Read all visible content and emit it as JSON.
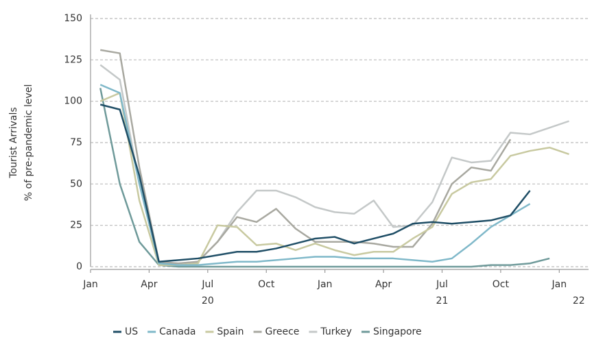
{
  "chart_data": {
    "type": "line",
    "y_label": [
      "Tourist Arrivals",
      "% of pre-pandemic level"
    ],
    "x": [
      0.5,
      1.5,
      2.5,
      3.5,
      4.5,
      5.5,
      6.5,
      7.5,
      8.5,
      9.5,
      10.5,
      11.5,
      12.5,
      13.5,
      14.5,
      15.5,
      16.5,
      17.5,
      18.5,
      19.5,
      20.5,
      21.5,
      22.5,
      23.5,
      24.5
    ],
    "series": [
      {
        "name": "US",
        "color": "#1f4e66",
        "values": [
          98,
          95,
          55,
          3,
          4,
          5,
          7,
          9,
          9,
          11,
          14,
          17,
          18,
          14,
          17,
          20,
          26,
          27,
          26,
          27,
          28,
          31,
          46,
          null,
          null
        ]
      },
      {
        "name": "Canada",
        "color": "#7fb8c9",
        "values": [
          110,
          105,
          50,
          2,
          1,
          1,
          2,
          3,
          3,
          4,
          5,
          6,
          6,
          5,
          5,
          5,
          4,
          3,
          5,
          14,
          24,
          31,
          38,
          null,
          null
        ]
      },
      {
        "name": "Spain",
        "color": "#c8c9a0",
        "values": [
          100,
          105,
          40,
          1,
          1,
          2,
          25,
          24,
          13,
          14,
          10,
          14,
          10,
          7,
          9,
          9,
          17,
          24,
          44,
          51,
          53,
          67,
          70,
          72,
          68
        ]
      },
      {
        "name": "Greece",
        "color": "#a8a8a0",
        "values": [
          131,
          129,
          60,
          3,
          2,
          3,
          15,
          30,
          27,
          35,
          23,
          15,
          15,
          15,
          14,
          12,
          12,
          26,
          50,
          60,
          58,
          77,
          null,
          null,
          null
        ]
      },
      {
        "name": "Turkey",
        "color": "#c4c8c8",
        "values": [
          122,
          113,
          50,
          2,
          2,
          3,
          15,
          33,
          46,
          46,
          42,
          36,
          33,
          32,
          40,
          24,
          25,
          39,
          66,
          63,
          64,
          81,
          80,
          84,
          88
        ]
      },
      {
        "name": "Singapore",
        "color": "#6f9a9a",
        "values": [
          108,
          50,
          15,
          1,
          0,
          0,
          0,
          0,
          0,
          0,
          0,
          0,
          0,
          0,
          0,
          0,
          0,
          0,
          0,
          0,
          1,
          1,
          2,
          5,
          null
        ]
      }
    ],
    "xlim": [
      0,
      25.5
    ],
    "xticks": [
      {
        "value": 0,
        "label": "Jan"
      },
      {
        "value": 3,
        "label": "Apr"
      },
      {
        "value": 6,
        "label": "Jul"
      },
      {
        "value": 9,
        "label": "Oct"
      },
      {
        "value": 12,
        "label": "Jan"
      },
      {
        "value": 15,
        "label": "Apr"
      },
      {
        "value": 18,
        "label": "Jul"
      },
      {
        "value": 21,
        "label": "Oct"
      },
      {
        "value": 24,
        "label": "Jan"
      }
    ],
    "year_ticks": [
      {
        "value": 6,
        "label": "20"
      },
      {
        "value": 18,
        "label": "21"
      },
      {
        "value": 25,
        "label": "22"
      }
    ],
    "ylim": [
      0,
      150
    ],
    "yticks": [
      0,
      25,
      50,
      75,
      100,
      125,
      150
    ],
    "grid": true,
    "legend": "bottom"
  }
}
